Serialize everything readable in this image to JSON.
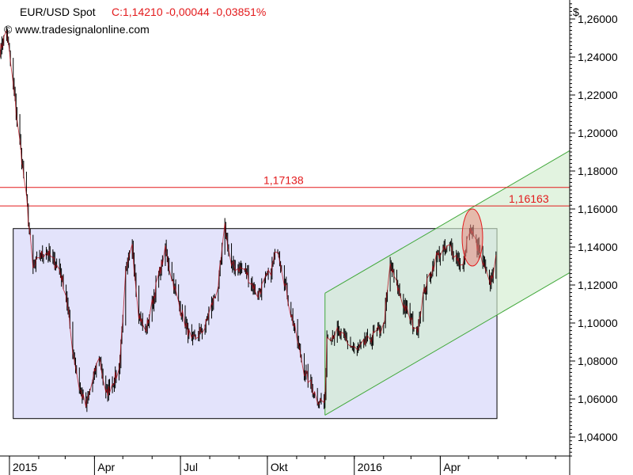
{
  "header": {
    "instrument": "EUR/USD Spot",
    "quote": "C:1,14210 -0,00044 -0,03851%",
    "copyright": "© www.tradesignalonline.com",
    "currency": "$"
  },
  "colors": {
    "red": "#e31a1c",
    "range_fill": "#e3e3fb",
    "channel_fill": "#d3ecd0",
    "channel_line": "#41a83a",
    "highlight": "#e88a80"
  },
  "chart_data": {
    "type": "line",
    "title": "EUR/USD Spot",
    "ylabel": "$",
    "ylim": [
      1.03,
      1.27
    ],
    "y_ticks": [
      "1,26000",
      "1,24000",
      "1,22000",
      "1,20000",
      "1,18000",
      "1,16000",
      "1,14000",
      "1,12000",
      "1,10000",
      "1,08000",
      "1,06000",
      "1,04000"
    ],
    "y_tick_values": [
      1.26,
      1.24,
      1.22,
      1.2,
      1.18,
      1.16,
      1.14,
      1.12,
      1.1,
      1.08,
      1.06,
      1.04
    ],
    "x_ticks": [
      "2015",
      "Apr",
      "Jul",
      "Okt",
      "2016",
      "Apr"
    ],
    "x_tick_values": [
      "2015-01-01",
      "2015-04-01",
      "2015-07-01",
      "2015-10-01",
      "2016-01-01",
      "2016-04-01"
    ],
    "xlim": [
      "2014-12-22",
      "2016-08-16"
    ],
    "series": [
      {
        "values_date": [
          "2014-12-22",
          "2014-12-29",
          "2015-01-05",
          "2015-01-12",
          "2015-01-19",
          "2015-01-26",
          "2015-02-02",
          "2015-02-09",
          "2015-02-23",
          "2015-03-02",
          "2015-03-09",
          "2015-03-16",
          "2015-03-23",
          "2015-04-06",
          "2015-04-13",
          "2015-04-27",
          "2015-05-04",
          "2015-05-11",
          "2015-05-18",
          "2015-05-25",
          "2015-06-08",
          "2015-06-15",
          "2015-06-29",
          "2015-07-13",
          "2015-07-27",
          "2015-08-10",
          "2015-08-17",
          "2015-08-24",
          "2015-09-07",
          "2015-09-21",
          "2015-10-05",
          "2015-10-12",
          "2015-10-26",
          "2015-11-09",
          "2015-11-23",
          "2015-12-01",
          "2015-12-03",
          "2015-12-14",
          "2016-01-04",
          "2016-01-18",
          "2016-02-01",
          "2016-02-08",
          "2016-02-22",
          "2016-03-07",
          "2016-03-14",
          "2016-03-28",
          "2016-04-11",
          "2016-04-25",
          "2016-05-02",
          "2016-05-09",
          "2016-05-23",
          "2016-05-31"
        ],
        "values": [
          1.243,
          1.254,
          1.225,
          1.195,
          1.165,
          1.128,
          1.135,
          1.138,
          1.128,
          1.115,
          1.086,
          1.066,
          1.056,
          1.083,
          1.062,
          1.075,
          1.125,
          1.14,
          1.105,
          1.095,
          1.125,
          1.138,
          1.11,
          1.09,
          1.098,
          1.12,
          1.15,
          1.13,
          1.128,
          1.115,
          1.128,
          1.14,
          1.105,
          1.075,
          1.06,
          1.058,
          1.093,
          1.095,
          1.085,
          1.092,
          1.098,
          1.13,
          1.11,
          1.095,
          1.115,
          1.135,
          1.14,
          1.13,
          1.15,
          1.142,
          1.12,
          1.135
        ]
      }
    ],
    "horizontal_levels": [
      {
        "label": "1,17138",
        "value": 1.17138
      },
      {
        "label": "1,16163",
        "value": 1.16163
      }
    ],
    "range_box": {
      "from": "2015-01-05",
      "to": "2016-05-31",
      "low": 1.0497,
      "high": 1.1497
    },
    "channel": {
      "from": "2015-12-01",
      "to": "2016-08-16",
      "upper_start": 1.1157,
      "upper_end": 1.1907,
      "lower_start": 1.0515,
      "lower_end": 1.1265
    },
    "highlight": {
      "date": "2016-05-05",
      "value": 1.145
    },
    "grid": false,
    "legend": "none"
  }
}
